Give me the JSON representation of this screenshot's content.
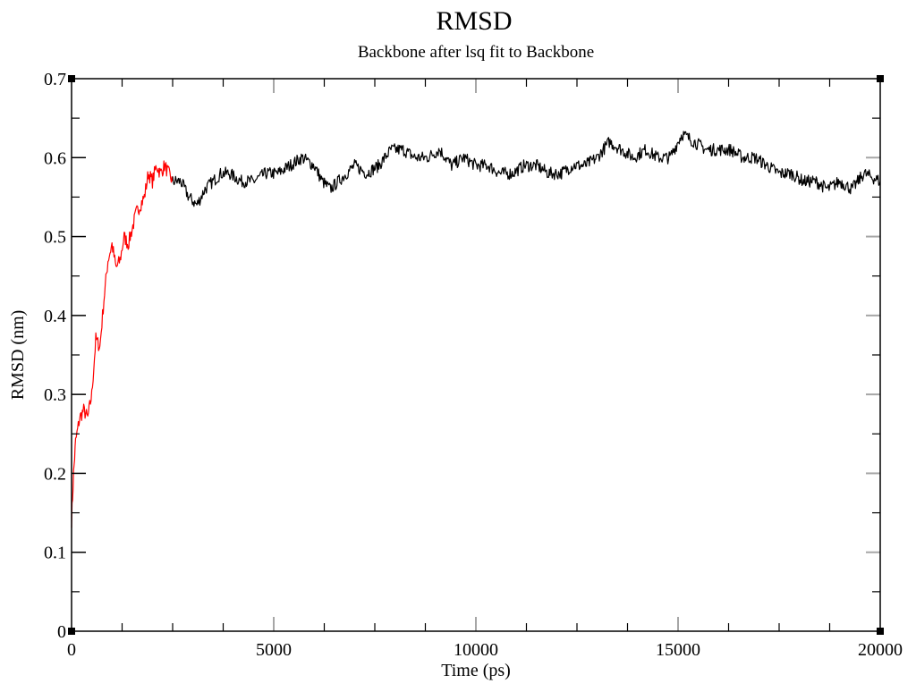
{
  "chart_data": {
    "type": "line",
    "title": "RMSD",
    "subtitle": "Backbone after lsq fit to Backbone",
    "xlabel": "Time (ps)",
    "ylabel": "RMSD (nm)",
    "xlim": [
      0,
      20000
    ],
    "ylim": [
      0,
      0.7
    ],
    "x_ticks": [
      0,
      5000,
      10000,
      15000,
      20000
    ],
    "x_tick_labels": [
      "0",
      "5000",
      "10000",
      "15000",
      "20000"
    ],
    "y_ticks": [
      0,
      0.1,
      0.2,
      0.3,
      0.4,
      0.5,
      0.6,
      0.7
    ],
    "y_tick_labels": [
      "0",
      "0.1",
      "0.2",
      "0.3",
      "0.4",
      "0.5",
      "0.6",
      "0.7"
    ],
    "grid": "major-vertical-tick-lines",
    "legend": "none",
    "series": [
      {
        "color": "#ff0000",
        "x": [
          0,
          50,
          100,
          200,
          300,
          400,
          500,
          600,
          700,
          800,
          900,
          1000,
          1100,
          1200,
          1300,
          1400,
          1500,
          1600,
          1700,
          1800,
          1900,
          2000,
          2100,
          2200,
          2300,
          2400,
          2500
        ],
        "y": [
          0.14,
          0.2,
          0.24,
          0.27,
          0.28,
          0.27,
          0.3,
          0.37,
          0.36,
          0.42,
          0.47,
          0.49,
          0.46,
          0.47,
          0.5,
          0.49,
          0.51,
          0.53,
          0.54,
          0.55,
          0.58,
          0.57,
          0.59,
          0.58,
          0.59,
          0.58,
          0.57
        ]
      },
      {
        "color": "#000000",
        "x": [
          2500,
          2700,
          2900,
          3100,
          3300,
          3500,
          3700,
          3900,
          4200,
          4500,
          4800,
          5100,
          5400,
          5700,
          6000,
          6200,
          6400,
          6600,
          6800,
          7000,
          7300,
          7600,
          7900,
          8200,
          8500,
          8800,
          9100,
          9400,
          9700,
          10000,
          10300,
          10600,
          10900,
          11200,
          11500,
          11800,
          12100,
          12400,
          12700,
          13000,
          13300,
          13600,
          13900,
          14200,
          14500,
          14800,
          15100,
          15400,
          15700,
          16000,
          16300,
          16600,
          16900,
          17200,
          17500,
          17800,
          18100,
          18400,
          18700,
          19000,
          19300,
          19600,
          20000
        ],
        "y": [
          0.57,
          0.57,
          0.55,
          0.54,
          0.56,
          0.57,
          0.58,
          0.58,
          0.57,
          0.57,
          0.58,
          0.58,
          0.59,
          0.6,
          0.59,
          0.57,
          0.56,
          0.57,
          0.58,
          0.59,
          0.58,
          0.59,
          0.61,
          0.61,
          0.6,
          0.6,
          0.61,
          0.59,
          0.6,
          0.59,
          0.59,
          0.58,
          0.58,
          0.59,
          0.59,
          0.58,
          0.58,
          0.59,
          0.59,
          0.6,
          0.62,
          0.61,
          0.6,
          0.61,
          0.6,
          0.6,
          0.63,
          0.62,
          0.61,
          0.61,
          0.61,
          0.6,
          0.6,
          0.59,
          0.58,
          0.58,
          0.57,
          0.57,
          0.56,
          0.57,
          0.56,
          0.58,
          0.57
        ]
      }
    ]
  }
}
